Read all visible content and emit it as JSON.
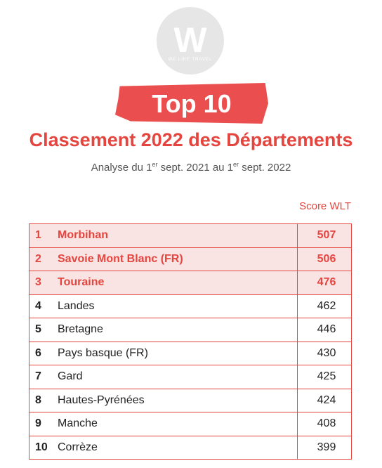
{
  "logo": {
    "letter": "W",
    "tagline": "WE LIKE TRAVEL"
  },
  "banner": {
    "label": "Top 10"
  },
  "title": "Classement 2022 des Départements",
  "subtitle": {
    "part1": "Analyse du 1",
    "sup1": "er",
    "part2": " sept. 2021 au 1",
    "sup2": "er",
    "part3": " sept. 2022"
  },
  "column_header": "Score WLT",
  "colors": {
    "accent": "#e5453f",
    "highlight_bg": "#fae3e3"
  },
  "rows": [
    {
      "rank": "1",
      "name": "Morbihan",
      "score": "507",
      "highlighted": true
    },
    {
      "rank": "2",
      "name": "Savoie Mont Blanc (FR)",
      "score": "506",
      "highlighted": true
    },
    {
      "rank": "3",
      "name": "Touraine",
      "score": "476",
      "highlighted": true
    },
    {
      "rank": "4",
      "name": "Landes",
      "score": "462",
      "highlighted": false
    },
    {
      "rank": "5",
      "name": "Bretagne",
      "score": "446",
      "highlighted": false
    },
    {
      "rank": "6",
      "name": "Pays basque (FR)",
      "score": "430",
      "highlighted": false
    },
    {
      "rank": "7",
      "name": "Gard",
      "score": "425",
      "highlighted": false
    },
    {
      "rank": "8",
      "name": "Hautes-Pyrénées",
      "score": "424",
      "highlighted": false
    },
    {
      "rank": "9",
      "name": "Manche",
      "score": "408",
      "highlighted": false
    },
    {
      "rank": "10",
      "name": "Corrèze",
      "score": "399",
      "highlighted": false
    }
  ]
}
